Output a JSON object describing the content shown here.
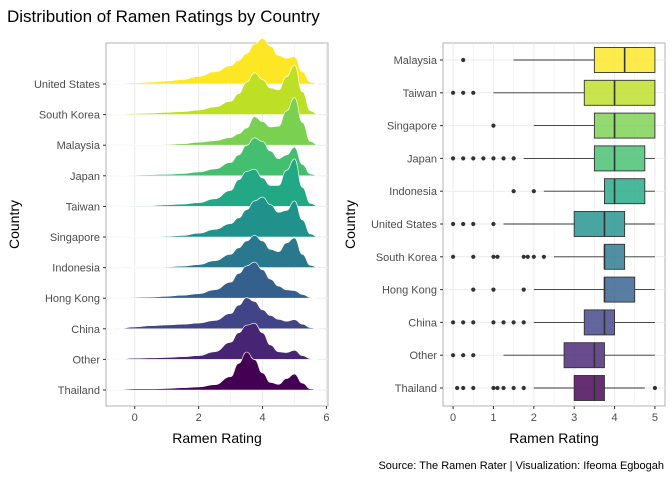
{
  "title": "Distribution of Ramen Ratings by Country",
  "caption": "Source: The Ramen Rater | Visualization: Ifeoma Egbogah",
  "chart_data": [
    {
      "type": "area",
      "subtype": "ridgeline",
      "xlabel": "Ramen Rating",
      "ylabel": "Country",
      "xlim": [
        -0.9,
        6.05
      ],
      "xticks": [
        0,
        2,
        4,
        6
      ],
      "grid": true,
      "categories": [
        "Thailand",
        "Other",
        "China",
        "Hong Kong",
        "Indonesia",
        "Singapore",
        "Taiwan",
        "Japan",
        "Malaysia",
        "South Korea",
        "United States"
      ],
      "colors": [
        "#440154",
        "#482475",
        "#414487",
        "#355f8d",
        "#2a788e",
        "#21918c",
        "#22a884",
        "#44bf70",
        "#7ad151",
        "#bddf26",
        "#fde725"
      ],
      "x": [
        -0.8,
        -0.5,
        0,
        0.5,
        1,
        1.5,
        2,
        2.5,
        3,
        3.25,
        3.5,
        3.75,
        4,
        4.25,
        4.5,
        4.75,
        5,
        5.25,
        5.5,
        5.75
      ],
      "series": [
        {
          "name": "Thailand",
          "values": [
            0,
            0.01,
            0.03,
            0.03,
            0.04,
            0.06,
            0.08,
            0.14,
            0.35,
            0.7,
            1.0,
            0.8,
            0.45,
            0.2,
            0.15,
            0.3,
            0.42,
            0.18,
            0.03,
            0
          ]
        },
        {
          "name": "Other",
          "values": [
            0,
            0.01,
            0.03,
            0.04,
            0.05,
            0.07,
            0.1,
            0.2,
            0.45,
            0.7,
            0.9,
            0.95,
            0.7,
            0.38,
            0.2,
            0.18,
            0.24,
            0.1,
            0.02,
            0
          ]
        },
        {
          "name": "China",
          "values": [
            0,
            0.01,
            0.05,
            0.08,
            0.1,
            0.12,
            0.15,
            0.22,
            0.4,
            0.62,
            0.82,
            0.72,
            0.5,
            0.35,
            0.25,
            0.2,
            0.24,
            0.12,
            0.03,
            0
          ]
        },
        {
          "name": "Hong Kong",
          "values": [
            0,
            0.01,
            0.02,
            0.03,
            0.05,
            0.08,
            0.12,
            0.22,
            0.42,
            0.65,
            0.85,
            0.95,
            0.75,
            0.5,
            0.32,
            0.22,
            0.2,
            0.1,
            0.02,
            0
          ]
        },
        {
          "name": "Indonesia",
          "values": [
            0,
            0,
            0.01,
            0.01,
            0.02,
            0.04,
            0.08,
            0.18,
            0.35,
            0.52,
            0.7,
            0.85,
            0.7,
            0.48,
            0.42,
            0.65,
            0.78,
            0.35,
            0.06,
            0
          ]
        },
        {
          "name": "Singapore",
          "values": [
            0,
            0,
            0.01,
            0.01,
            0.02,
            0.04,
            0.1,
            0.2,
            0.35,
            0.5,
            0.72,
            0.95,
            1.05,
            0.85,
            0.65,
            0.7,
            0.95,
            0.45,
            0.08,
            0
          ]
        },
        {
          "name": "Taiwan",
          "values": [
            0,
            0.01,
            0.02,
            0.02,
            0.04,
            0.06,
            0.1,
            0.2,
            0.42,
            0.7,
            0.92,
            0.98,
            0.75,
            0.55,
            0.55,
            0.95,
            1.25,
            0.5,
            0.08,
            0
          ]
        },
        {
          "name": "Japan",
          "values": [
            0,
            0.01,
            0.02,
            0.03,
            0.04,
            0.06,
            0.1,
            0.18,
            0.35,
            0.55,
            0.8,
            1.0,
            0.9,
            0.65,
            0.45,
            0.55,
            0.75,
            0.3,
            0.05,
            0
          ]
        },
        {
          "name": "Malaysia",
          "values": [
            0,
            0,
            0.01,
            0.01,
            0.02,
            0.04,
            0.08,
            0.12,
            0.2,
            0.3,
            0.45,
            0.75,
            0.62,
            0.48,
            0.5,
            0.9,
            1.25,
            0.6,
            0.1,
            0
          ]
        },
        {
          "name": "South Korea",
          "values": [
            0,
            0.01,
            0.03,
            0.04,
            0.06,
            0.08,
            0.12,
            0.2,
            0.35,
            0.55,
            0.85,
            1.1,
            0.92,
            0.7,
            0.65,
            1.0,
            1.3,
            0.6,
            0.1,
            0
          ]
        },
        {
          "name": "United States",
          "values": [
            0,
            0.01,
            0.03,
            0.05,
            0.08,
            0.12,
            0.2,
            0.32,
            0.48,
            0.62,
            0.8,
            1.05,
            1.2,
            1.0,
            0.75,
            0.68,
            0.72,
            0.32,
            0.05,
            0
          ]
        }
      ]
    },
    {
      "type": "box",
      "xlabel": "Ramen Rating",
      "ylabel": "Country",
      "xlim": [
        -0.25,
        5.25
      ],
      "xticks": [
        0,
        1,
        2,
        3,
        4,
        5
      ],
      "grid": true,
      "boxes": [
        {
          "name": "Thailand",
          "color": "#440154",
          "whisker_low": 2.0,
          "q1": 3.0,
          "median": 3.5,
          "q3": 3.75,
          "whisker_high": 4.75,
          "outliers": [
            0.1,
            0.25,
            0.5,
            1.0,
            1.1,
            1.25,
            1.5,
            1.75,
            5.0
          ]
        },
        {
          "name": "Other",
          "color": "#482475",
          "whisker_low": 1.25,
          "q1": 2.75,
          "median": 3.5,
          "q3": 3.75,
          "whisker_high": 5.0,
          "outliers": [
            0,
            0.25,
            0.5
          ]
        },
        {
          "name": "China",
          "color": "#414487",
          "whisker_low": 2.0,
          "q1": 3.25,
          "median": 3.75,
          "q3": 4.0,
          "whisker_high": 5.0,
          "outliers": [
            0,
            0.25,
            0.5,
            1.0,
            1.25,
            1.5,
            1.75
          ]
        },
        {
          "name": "Hong Kong",
          "color": "#355f8d",
          "whisker_low": 2.0,
          "q1": 3.75,
          "median": 3.75,
          "q3": 4.5,
          "whisker_high": 5.0,
          "outliers": [
            0.5,
            1.0,
            1.75
          ]
        },
        {
          "name": "South Korea",
          "color": "#2a788e",
          "whisker_low": 2.5,
          "q1": 3.75,
          "median": 3.75,
          "q3": 4.25,
          "whisker_high": 5.0,
          "outliers": [
            0,
            0.5,
            1.0,
            1.1,
            1.75,
            1.85,
            2.0,
            2.25
          ]
        },
        {
          "name": "United States",
          "color": "#21918c",
          "whisker_low": 1.25,
          "q1": 3.0,
          "median": 3.75,
          "q3": 4.25,
          "whisker_high": 5.0,
          "outliers": [
            0,
            0.25,
            0.5,
            1.0
          ]
        },
        {
          "name": "Indonesia",
          "color": "#22a884",
          "whisker_low": 2.25,
          "q1": 3.75,
          "median": 4.0,
          "q3": 4.75,
          "whisker_high": 5.0,
          "outliers": [
            1.5,
            2.0
          ]
        },
        {
          "name": "Japan",
          "color": "#44bf70",
          "whisker_low": 1.75,
          "q1": 3.5,
          "median": 4.0,
          "q3": 4.75,
          "whisker_high": 5.0,
          "outliers": [
            0,
            0.25,
            0.5,
            0.75,
            1.0,
            1.25,
            1.5
          ]
        },
        {
          "name": "Singapore",
          "color": "#7ad151",
          "whisker_low": 2.0,
          "q1": 3.5,
          "median": 4.0,
          "q3": 5.0,
          "whisker_high": 5.0,
          "outliers": [
            1.0
          ]
        },
        {
          "name": "Taiwan",
          "color": "#bddf26",
          "whisker_low": 1.0,
          "q1": 3.25,
          "median": 4.0,
          "q3": 5.0,
          "whisker_high": 5.0,
          "outliers": [
            0,
            0.25,
            0.5
          ]
        },
        {
          "name": "Malaysia",
          "color": "#fde725",
          "whisker_low": 1.5,
          "q1": 3.5,
          "median": 4.25,
          "q3": 5.0,
          "whisker_high": 5.0,
          "outliers": [
            0.25
          ]
        }
      ]
    }
  ]
}
